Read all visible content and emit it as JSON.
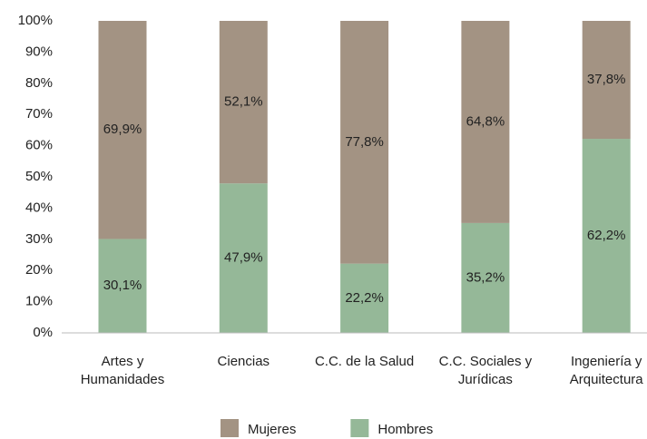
{
  "chart_data": {
    "type": "stacked_bar",
    "categories": [
      "Artes y Humanidades",
      "Ciencias",
      "C.C. de la Salud",
      "C.C. Sociales y Jurídicas",
      "Ingeniería y Arquitectura"
    ],
    "series": [
      {
        "name": "Mujeres",
        "color": "#a39383",
        "values": [
          69.9,
          52.1,
          77.8,
          64.8,
          37.8
        ],
        "value_labels": [
          "69,9%",
          "52,1%",
          "77,8%",
          "64,8%",
          "37,8%"
        ]
      },
      {
        "name": "Hombres",
        "color": "#95b898",
        "values": [
          30.1,
          47.9,
          22.2,
          35.2,
          62.2
        ],
        "value_labels": [
          "30,1%",
          "47,9%",
          "22,2%",
          "35,2%",
          "62,2%"
        ]
      }
    ],
    "ylim": [
      0,
      100
    ],
    "yticks": [
      {
        "value": 0,
        "label": "0%"
      },
      {
        "value": 10,
        "label": "10%"
      },
      {
        "value": 20,
        "label": "20%"
      },
      {
        "value": 30,
        "label": "30%"
      },
      {
        "value": 40,
        "label": "40%"
      },
      {
        "value": 50,
        "label": "50%"
      },
      {
        "value": 60,
        "label": "60%"
      },
      {
        "value": 70,
        "label": "70%"
      },
      {
        "value": 80,
        "label": "80%"
      },
      {
        "value": 90,
        "label": "90%"
      },
      {
        "value": 100,
        "label": "100%"
      }
    ],
    "grid": false,
    "legend": "bottom"
  }
}
